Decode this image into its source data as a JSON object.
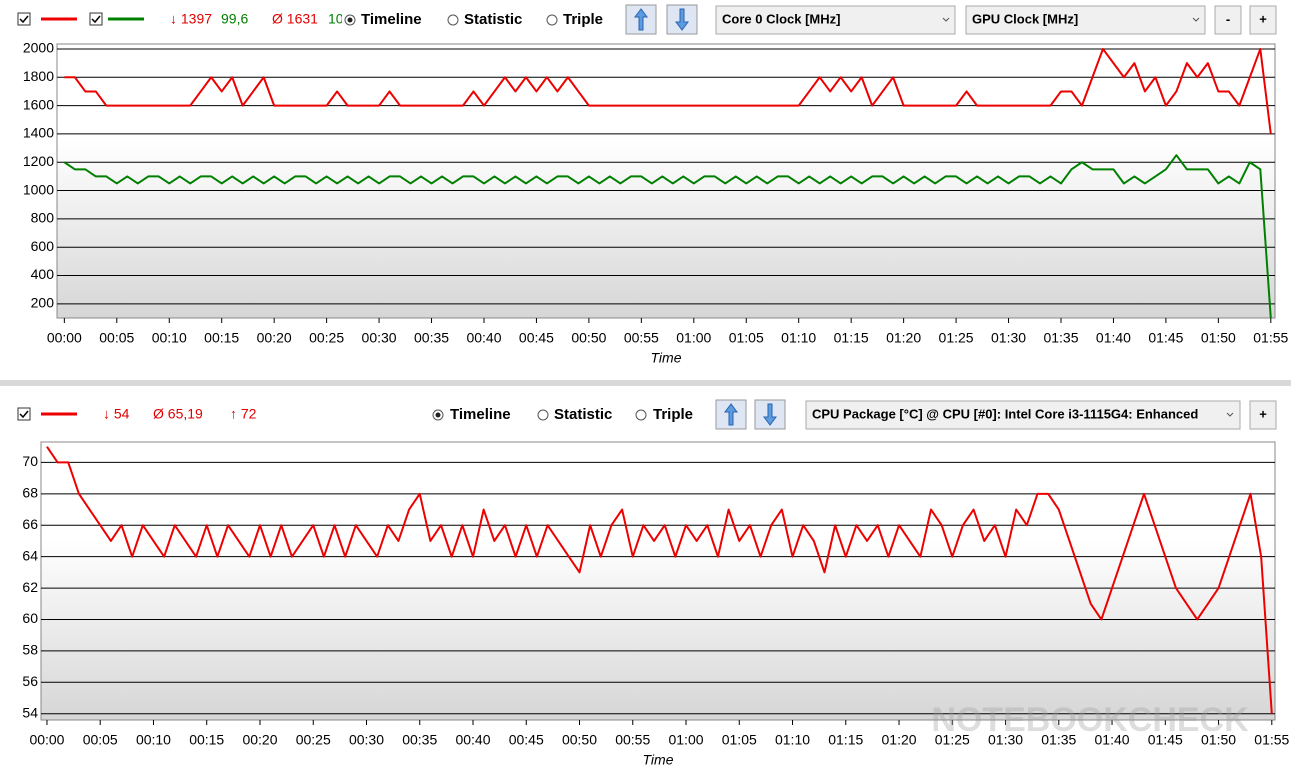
{
  "toolbars": [
    {
      "stats": [
        "↓ 1397",
        "99,6",
        "Ø 1631",
        "10"
      ],
      "modes": [
        "Timeline",
        "Statistic",
        "Triple"
      ],
      "selects": [
        "Core 0 Clock [MHz]",
        "GPU Clock [MHz]"
      ],
      "buttons": [
        "-",
        "+"
      ]
    },
    {
      "stats": [
        "↓ 54",
        "Ø 65,19",
        "↑ 72"
      ],
      "modes": [
        "Timeline",
        "Statistic",
        "Triple"
      ],
      "selects": [
        "CPU Package [°C] @ CPU [#0]: Intel Core i3-1115G4: Enhanced"
      ],
      "buttons": [
        "+"
      ]
    }
  ],
  "watermark": "NOTEBOOKCHECK",
  "chart_data": [
    {
      "type": "line",
      "x_label": "Time",
      "grid": true,
      "xlim": [
        -0.7,
        115.4
      ],
      "ylim": [
        100,
        2035
      ],
      "yticks": [
        200,
        400,
        600,
        800,
        1000,
        1200,
        1400,
        1600,
        1800,
        2000
      ],
      "xticks": [
        {
          "value": 0,
          "label": "00:00"
        },
        {
          "value": 5,
          "label": "00:05"
        },
        {
          "value": 10,
          "label": "00:10"
        },
        {
          "value": 15,
          "label": "00:15"
        },
        {
          "value": 20,
          "label": "00:20"
        },
        {
          "value": 25,
          "label": "00:25"
        },
        {
          "value": 30,
          "label": "00:30"
        },
        {
          "value": 35,
          "label": "00:35"
        },
        {
          "value": 40,
          "label": "00:40"
        },
        {
          "value": 45,
          "label": "00:45"
        },
        {
          "value": 50,
          "label": "00:50"
        },
        {
          "value": 55,
          "label": "00:55"
        },
        {
          "value": 60,
          "label": "01:00"
        },
        {
          "value": 65,
          "label": "01:05"
        },
        {
          "value": 70,
          "label": "01:10"
        },
        {
          "value": 75,
          "label": "01:15"
        },
        {
          "value": 80,
          "label": "01:20"
        },
        {
          "value": 85,
          "label": "01:25"
        },
        {
          "value": 90,
          "label": "01:30"
        },
        {
          "value": 95,
          "label": "01:35"
        },
        {
          "value": 100,
          "label": "01:40"
        },
        {
          "value": 105,
          "label": "01:45"
        },
        {
          "value": 110,
          "label": "01:50"
        },
        {
          "value": 115,
          "label": "01:55"
        }
      ],
      "x": [
        0,
        1,
        2,
        3,
        4,
        5,
        6,
        7,
        8,
        9,
        10,
        11,
        12,
        13,
        14,
        15,
        16,
        17,
        18,
        19,
        20,
        21,
        22,
        23,
        24,
        25,
        26,
        27,
        28,
        29,
        30,
        31,
        32,
        33,
        34,
        35,
        36,
        37,
        38,
        39,
        40,
        41,
        42,
        43,
        44,
        45,
        46,
        47,
        48,
        49,
        50,
        51,
        52,
        53,
        54,
        55,
        56,
        57,
        58,
        59,
        60,
        61,
        62,
        63,
        64,
        65,
        66,
        67,
        68,
        69,
        70,
        71,
        72,
        73,
        74,
        75,
        76,
        77,
        78,
        79,
        80,
        81,
        82,
        83,
        84,
        85,
        86,
        87,
        88,
        89,
        90,
        91,
        92,
        93,
        94,
        95,
        96,
        97,
        98,
        99,
        100,
        101,
        102,
        103,
        104,
        105,
        106,
        107,
        108,
        109,
        110,
        111,
        112,
        113,
        114,
        115
      ],
      "series": [
        {
          "color": "#ee0000",
          "values": [
            1800,
            1800,
            1700,
            1700,
            1600,
            1600,
            1600,
            1600,
            1600,
            1600,
            1600,
            1600,
            1600,
            1700,
            1800,
            1700,
            1800,
            1600,
            1700,
            1800,
            1600,
            1600,
            1600,
            1600,
            1600,
            1600,
            1700,
            1600,
            1600,
            1600,
            1600,
            1700,
            1600,
            1600,
            1600,
            1600,
            1600,
            1600,
            1600,
            1700,
            1600,
            1700,
            1800,
            1700,
            1800,
            1700,
            1800,
            1700,
            1800,
            1700,
            1600,
            1600,
            1600,
            1600,
            1600,
            1600,
            1600,
            1600,
            1600,
            1600,
            1600,
            1600,
            1600,
            1600,
            1600,
            1600,
            1600,
            1600,
            1600,
            1600,
            1600,
            1700,
            1800,
            1700,
            1800,
            1700,
            1800,
            1600,
            1700,
            1800,
            1600,
            1600,
            1600,
            1600,
            1600,
            1600,
            1700,
            1600,
            1600,
            1600,
            1600,
            1600,
            1600,
            1600,
            1600,
            1700,
            1700,
            1600,
            1800,
            2000,
            1900,
            1800,
            1900,
            1700,
            1800,
            1600,
            1700,
            1900,
            1800,
            1900,
            1700,
            1700,
            1600,
            1800,
            2000,
            1400
          ]
        },
        {
          "color": "#008000",
          "values": [
            1200,
            1150,
            1150,
            1100,
            1100,
            1050,
            1100,
            1050,
            1100,
            1100,
            1050,
            1100,
            1050,
            1100,
            1100,
            1050,
            1100,
            1050,
            1100,
            1050,
            1100,
            1050,
            1100,
            1100,
            1050,
            1100,
            1050,
            1100,
            1050,
            1100,
            1050,
            1100,
            1100,
            1050,
            1100,
            1050,
            1100,
            1050,
            1100,
            1100,
            1050,
            1100,
            1050,
            1100,
            1050,
            1100,
            1050,
            1100,
            1100,
            1050,
            1100,
            1050,
            1100,
            1050,
            1100,
            1100,
            1050,
            1100,
            1050,
            1100,
            1050,
            1100,
            1100,
            1050,
            1100,
            1050,
            1100,
            1050,
            1100,
            1100,
            1050,
            1100,
            1050,
            1100,
            1050,
            1100,
            1050,
            1100,
            1100,
            1050,
            1100,
            1050,
            1100,
            1050,
            1100,
            1100,
            1050,
            1100,
            1050,
            1100,
            1050,
            1100,
            1100,
            1050,
            1100,
            1050,
            1150,
            1200,
            1150,
            1150,
            1150,
            1050,
            1100,
            1050,
            1100,
            1150,
            1250,
            1150,
            1150,
            1150,
            1050,
            1100,
            1050,
            1200,
            1150,
            100
          ]
        }
      ]
    },
    {
      "type": "line",
      "x_label": "Time",
      "grid": true,
      "xlim": [
        -0.56,
        115.3
      ],
      "ylim": [
        53.6,
        71.3
      ],
      "yticks": [
        54,
        56,
        58,
        60,
        62,
        64,
        66,
        68,
        70
      ],
      "xticks": [
        {
          "value": 0,
          "label": "00:00"
        },
        {
          "value": 5,
          "label": "00:05"
        },
        {
          "value": 10,
          "label": "00:10"
        },
        {
          "value": 15,
          "label": "00:15"
        },
        {
          "value": 20,
          "label": "00:20"
        },
        {
          "value": 25,
          "label": "00:25"
        },
        {
          "value": 30,
          "label": "00:30"
        },
        {
          "value": 35,
          "label": "00:35"
        },
        {
          "value": 40,
          "label": "00:40"
        },
        {
          "value": 45,
          "label": "00:45"
        },
        {
          "value": 50,
          "label": "00:50"
        },
        {
          "value": 55,
          "label": "00:55"
        },
        {
          "value": 60,
          "label": "01:00"
        },
        {
          "value": 65,
          "label": "01:05"
        },
        {
          "value": 70,
          "label": "01:10"
        },
        {
          "value": 75,
          "label": "01:15"
        },
        {
          "value": 80,
          "label": "01:20"
        },
        {
          "value": 85,
          "label": "01:25"
        },
        {
          "value": 90,
          "label": "01:30"
        },
        {
          "value": 95,
          "label": "01:35"
        },
        {
          "value": 100,
          "label": "01:40"
        },
        {
          "value": 105,
          "label": "01:45"
        },
        {
          "value": 110,
          "label": "01:50"
        },
        {
          "value": 115,
          "label": "01:55"
        }
      ],
      "x": [
        0,
        1,
        2,
        3,
        4,
        5,
        6,
        7,
        8,
        9,
        10,
        11,
        12,
        13,
        14,
        15,
        16,
        17,
        18,
        19,
        20,
        21,
        22,
        23,
        24,
        25,
        26,
        27,
        28,
        29,
        30,
        31,
        32,
        33,
        34,
        35,
        36,
        37,
        38,
        39,
        40,
        41,
        42,
        43,
        44,
        45,
        46,
        47,
        48,
        49,
        50,
        51,
        52,
        53,
        54,
        55,
        56,
        57,
        58,
        59,
        60,
        61,
        62,
        63,
        64,
        65,
        66,
        67,
        68,
        69,
        70,
        71,
        72,
        73,
        74,
        75,
        76,
        77,
        78,
        79,
        80,
        81,
        82,
        83,
        84,
        85,
        86,
        87,
        88,
        89,
        90,
        91,
        92,
        93,
        94,
        95,
        96,
        97,
        98,
        99,
        100,
        101,
        102,
        103,
        104,
        105,
        106,
        107,
        108,
        109,
        110,
        111,
        112,
        113,
        114,
        115
      ],
      "series": [
        {
          "color": "#ee0000",
          "values": [
            71,
            70,
            70,
            68,
            67,
            66,
            65,
            66,
            64,
            66,
            65,
            64,
            66,
            65,
            64,
            66,
            64,
            66,
            65,
            64,
            66,
            64,
            66,
            64,
            65,
            66,
            64,
            66,
            64,
            66,
            65,
            64,
            66,
            65,
            67,
            68,
            65,
            66,
            64,
            66,
            64,
            67,
            65,
            66,
            64,
            66,
            64,
            66,
            65,
            64,
            63,
            66,
            64,
            66,
            67,
            64,
            66,
            65,
            66,
            64,
            66,
            65,
            66,
            64,
            67,
            65,
            66,
            64,
            66,
            67,
            64,
            66,
            65,
            63,
            66,
            64,
            66,
            65,
            66,
            64,
            66,
            65,
            64,
            67,
            66,
            64,
            66,
            67,
            65,
            66,
            64,
            67,
            66,
            68,
            68,
            67,
            65,
            63,
            61,
            60,
            62,
            64,
            66,
            68,
            66,
            64,
            62,
            61,
            60,
            61,
            62,
            64,
            66,
            68,
            64,
            54
          ]
        }
      ]
    }
  ]
}
